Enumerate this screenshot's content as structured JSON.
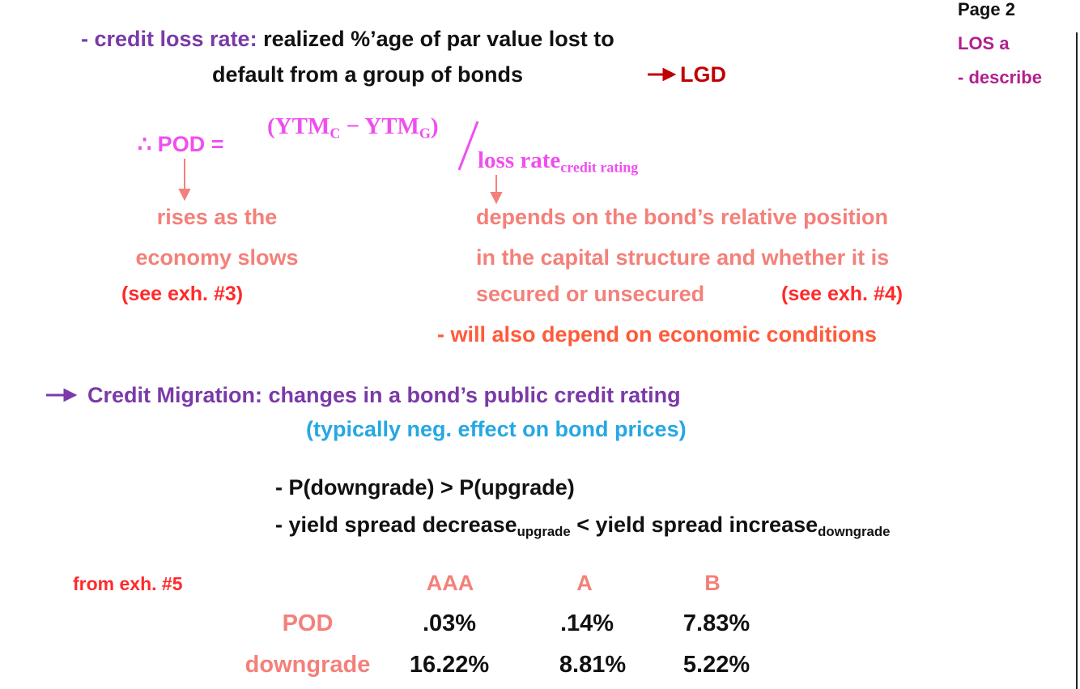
{
  "header": {
    "page": "Page 2",
    "los": "LOS a",
    "task": "- describe"
  },
  "loss_rate": {
    "term": "- credit loss rate:",
    "definition_1": "realized %’age of par value lost to",
    "definition_2": "default from a group of bonds",
    "result": "LGD"
  },
  "formula": {
    "lhs": "∴ POD =",
    "num_open": "(YTM",
    "num_sub_1": "C",
    "num_mid": " − YTM",
    "num_sub_2": "G",
    "num_close": ")",
    "den": "loss rate",
    "den_sub": "credit rating"
  },
  "pod_note": {
    "lines": [
      "rises as the",
      "economy slows"
    ],
    "ref": "(see exh. #3)"
  },
  "loss_note": {
    "lines": [
      "depends on the bond’s relative position",
      "in the capital structure and whether it is",
      "secured or unsecured"
    ],
    "ref": "(see exh. #4)",
    "extra": "- will also depend on economic conditions"
  },
  "migration": {
    "definition": "Credit Migration: changes in a bond’s public credit rating",
    "effect": "(typically neg. effect on bond prices)",
    "bullet_1": "- P(downgrade) > P(upgrade)",
    "bullet_2": {
      "a": "- yield spread decrease",
      "a_sub": "upgrade",
      "b": " < yield spread increase",
      "b_sub": "downgrade"
    }
  },
  "table": {
    "source": "from exh. #5",
    "columns": [
      "AAA",
      "A",
      "B"
    ],
    "rows": [
      {
        "name": "POD",
        "values": [
          ".03%",
          ".14%",
          "7.83%"
        ]
      },
      {
        "name": "downgrade",
        "values": [
          "16.22%",
          "8.81%",
          "5.22%"
        ]
      }
    ]
  }
}
